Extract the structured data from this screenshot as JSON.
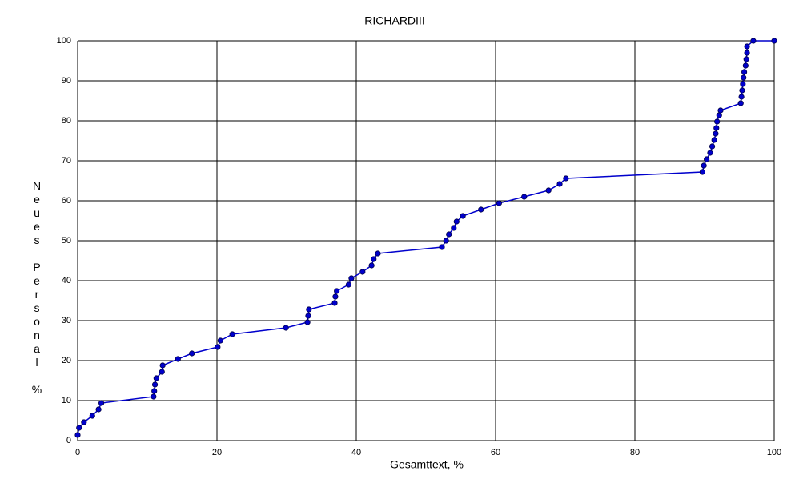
{
  "chart_data": {
    "type": "line",
    "title": "RICHARDIII",
    "x_label": "Gesamttext, %",
    "y_label": "Neues Personal  %",
    "x": [
      0,
      0.2,
      0.9,
      2.1,
      3,
      3.4,
      10.9,
      11,
      11.1,
      11.3,
      12.1,
      12.2,
      14.4,
      16.4,
      20.1,
      20.5,
      22.2,
      29.9,
      33,
      33.1,
      33.2,
      36.9,
      37,
      37.2,
      38.9,
      39.3,
      40.9,
      42.2,
      42.5,
      43.1,
      52.3,
      52.9,
      53.3,
      54,
      54.4,
      55.3,
      57.9,
      60.5,
      64.1,
      67.6,
      69.2,
      70.1,
      89.7,
      89.9,
      90.3,
      90.8,
      91.1,
      91.4,
      91.6,
      91.7,
      91.8,
      92.1,
      92.3,
      95.2,
      95.3,
      95.4,
      95.5,
      95.6,
      95.7,
      95.9,
      96,
      96.1,
      96.1,
      97,
      100
    ],
    "series": [
      {
        "name": "RICHARDIII",
        "color": "#0000cc",
        "values": [
          1.4,
          3.2,
          4.6,
          6.2,
          7.8,
          9.4,
          11,
          12.4,
          14,
          15.6,
          17.2,
          18.8,
          20.4,
          21.8,
          23.4,
          25,
          26.6,
          28.2,
          29.6,
          31.2,
          32.8,
          34.4,
          36,
          37.4,
          39,
          40.6,
          42.2,
          43.8,
          45.4,
          46.8,
          48.4,
          50,
          51.6,
          53.2,
          54.8,
          56.2,
          57.8,
          59.4,
          61,
          62.6,
          64.2,
          65.6,
          67.2,
          68.8,
          70.4,
          72,
          73.6,
          75.2,
          76.8,
          78.2,
          79.8,
          81.4,
          82.6,
          84.4,
          86,
          87.6,
          89.2,
          90.8,
          92.2,
          93.8,
          95.4,
          97,
          98.6,
          100,
          100
        ]
      }
    ],
    "xlim": [
      0,
      100
    ],
    "ylim": [
      0,
      100
    ],
    "xticks": [
      0,
      20,
      40,
      60,
      80,
      100
    ],
    "yticks": [
      0,
      10,
      20,
      30,
      40,
      50,
      60,
      70,
      80,
      90,
      100
    ],
    "grid": true
  }
}
